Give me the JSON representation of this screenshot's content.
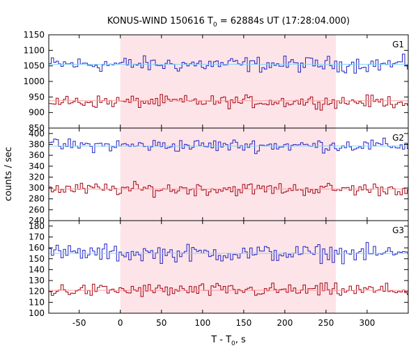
{
  "figure": {
    "title_main": "KONUS-WIND 150616 T",
    "title_sub": "0",
    "title_rest": " = 62884s UT (17:28:04.000)",
    "xlabel_main": "T - T",
    "xlabel_sub": "0",
    "xlabel_rest": ", s",
    "ylabel": "counts / sec",
    "highlight_interval": [
      0,
      262
    ],
    "highlight_color": "#fde4e8",
    "series_colors": {
      "upper_blue": "#1f1fbf",
      "lower_red": "#a00010",
      "bg_blue": "#7fd3ff",
      "bg_red": "#ff9a9a"
    }
  },
  "chart_data": [
    {
      "type": "line",
      "panel": "G1",
      "xlim": [
        -87,
        350
      ],
      "ylim": [
        850,
        1150
      ],
      "yticks": [
        850,
        900,
        950,
        1000,
        1050,
        1100,
        1150
      ],
      "series": [
        {
          "role": "upper",
          "bin": 2.944,
          "start": -87,
          "mean": 1055,
          "amp": 32,
          "background": 1055
        },
        {
          "role": "lower",
          "bin": 2.944,
          "start": -87,
          "mean": 935,
          "amp": 25,
          "background": 938
        }
      ]
    },
    {
      "type": "line",
      "panel": "G2",
      "xlim": [
        -87,
        350
      ],
      "ylim": [
        240,
        410
      ],
      "yticks": [
        240,
        260,
        280,
        300,
        320,
        340,
        360,
        380,
        400
      ],
      "series": [
        {
          "role": "upper",
          "bin": 2.944,
          "start": -87,
          "mean": 378,
          "amp": 15,
          "background": 377
        },
        {
          "role": "lower",
          "bin": 2.944,
          "start": -87,
          "mean": 298,
          "amp": 15,
          "background": 298
        }
      ]
    },
    {
      "type": "line",
      "panel": "G3",
      "xlim": [
        -87,
        350
      ],
      "ylim": [
        100,
        185
      ],
      "yticks": [
        100,
        110,
        120,
        130,
        140,
        150,
        160,
        170,
        180
      ],
      "series": [
        {
          "role": "upper",
          "bin": 2.944,
          "start": -87,
          "mean": 155,
          "amp": 10,
          "background": 155
        },
        {
          "role": "lower",
          "bin": 2.944,
          "start": -87,
          "mean": 121,
          "amp": 8,
          "background": 121
        }
      ]
    }
  ],
  "xticks": [
    -50,
    0,
    50,
    100,
    150,
    200,
    250,
    300
  ]
}
